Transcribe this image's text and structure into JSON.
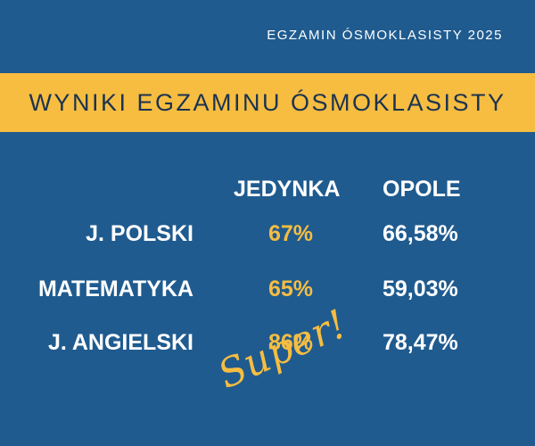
{
  "header": {
    "kicker": "EGZAMIN ÓSMOKLASISTY 2025",
    "title": "WYNIKI EGZAMINU ÓSMOKLASISTY"
  },
  "table": {
    "columns": [
      "JEDYNKA",
      "OPOLE"
    ],
    "rows": [
      [
        "J. POLSKI",
        "67%",
        "66,58%"
      ],
      [
        "MATEMATYKA",
        "65%",
        "59,03%"
      ],
      [
        "J. ANGIELSKI",
        "86%",
        "78,47%"
      ]
    ]
  },
  "annotation": "Super!"
}
